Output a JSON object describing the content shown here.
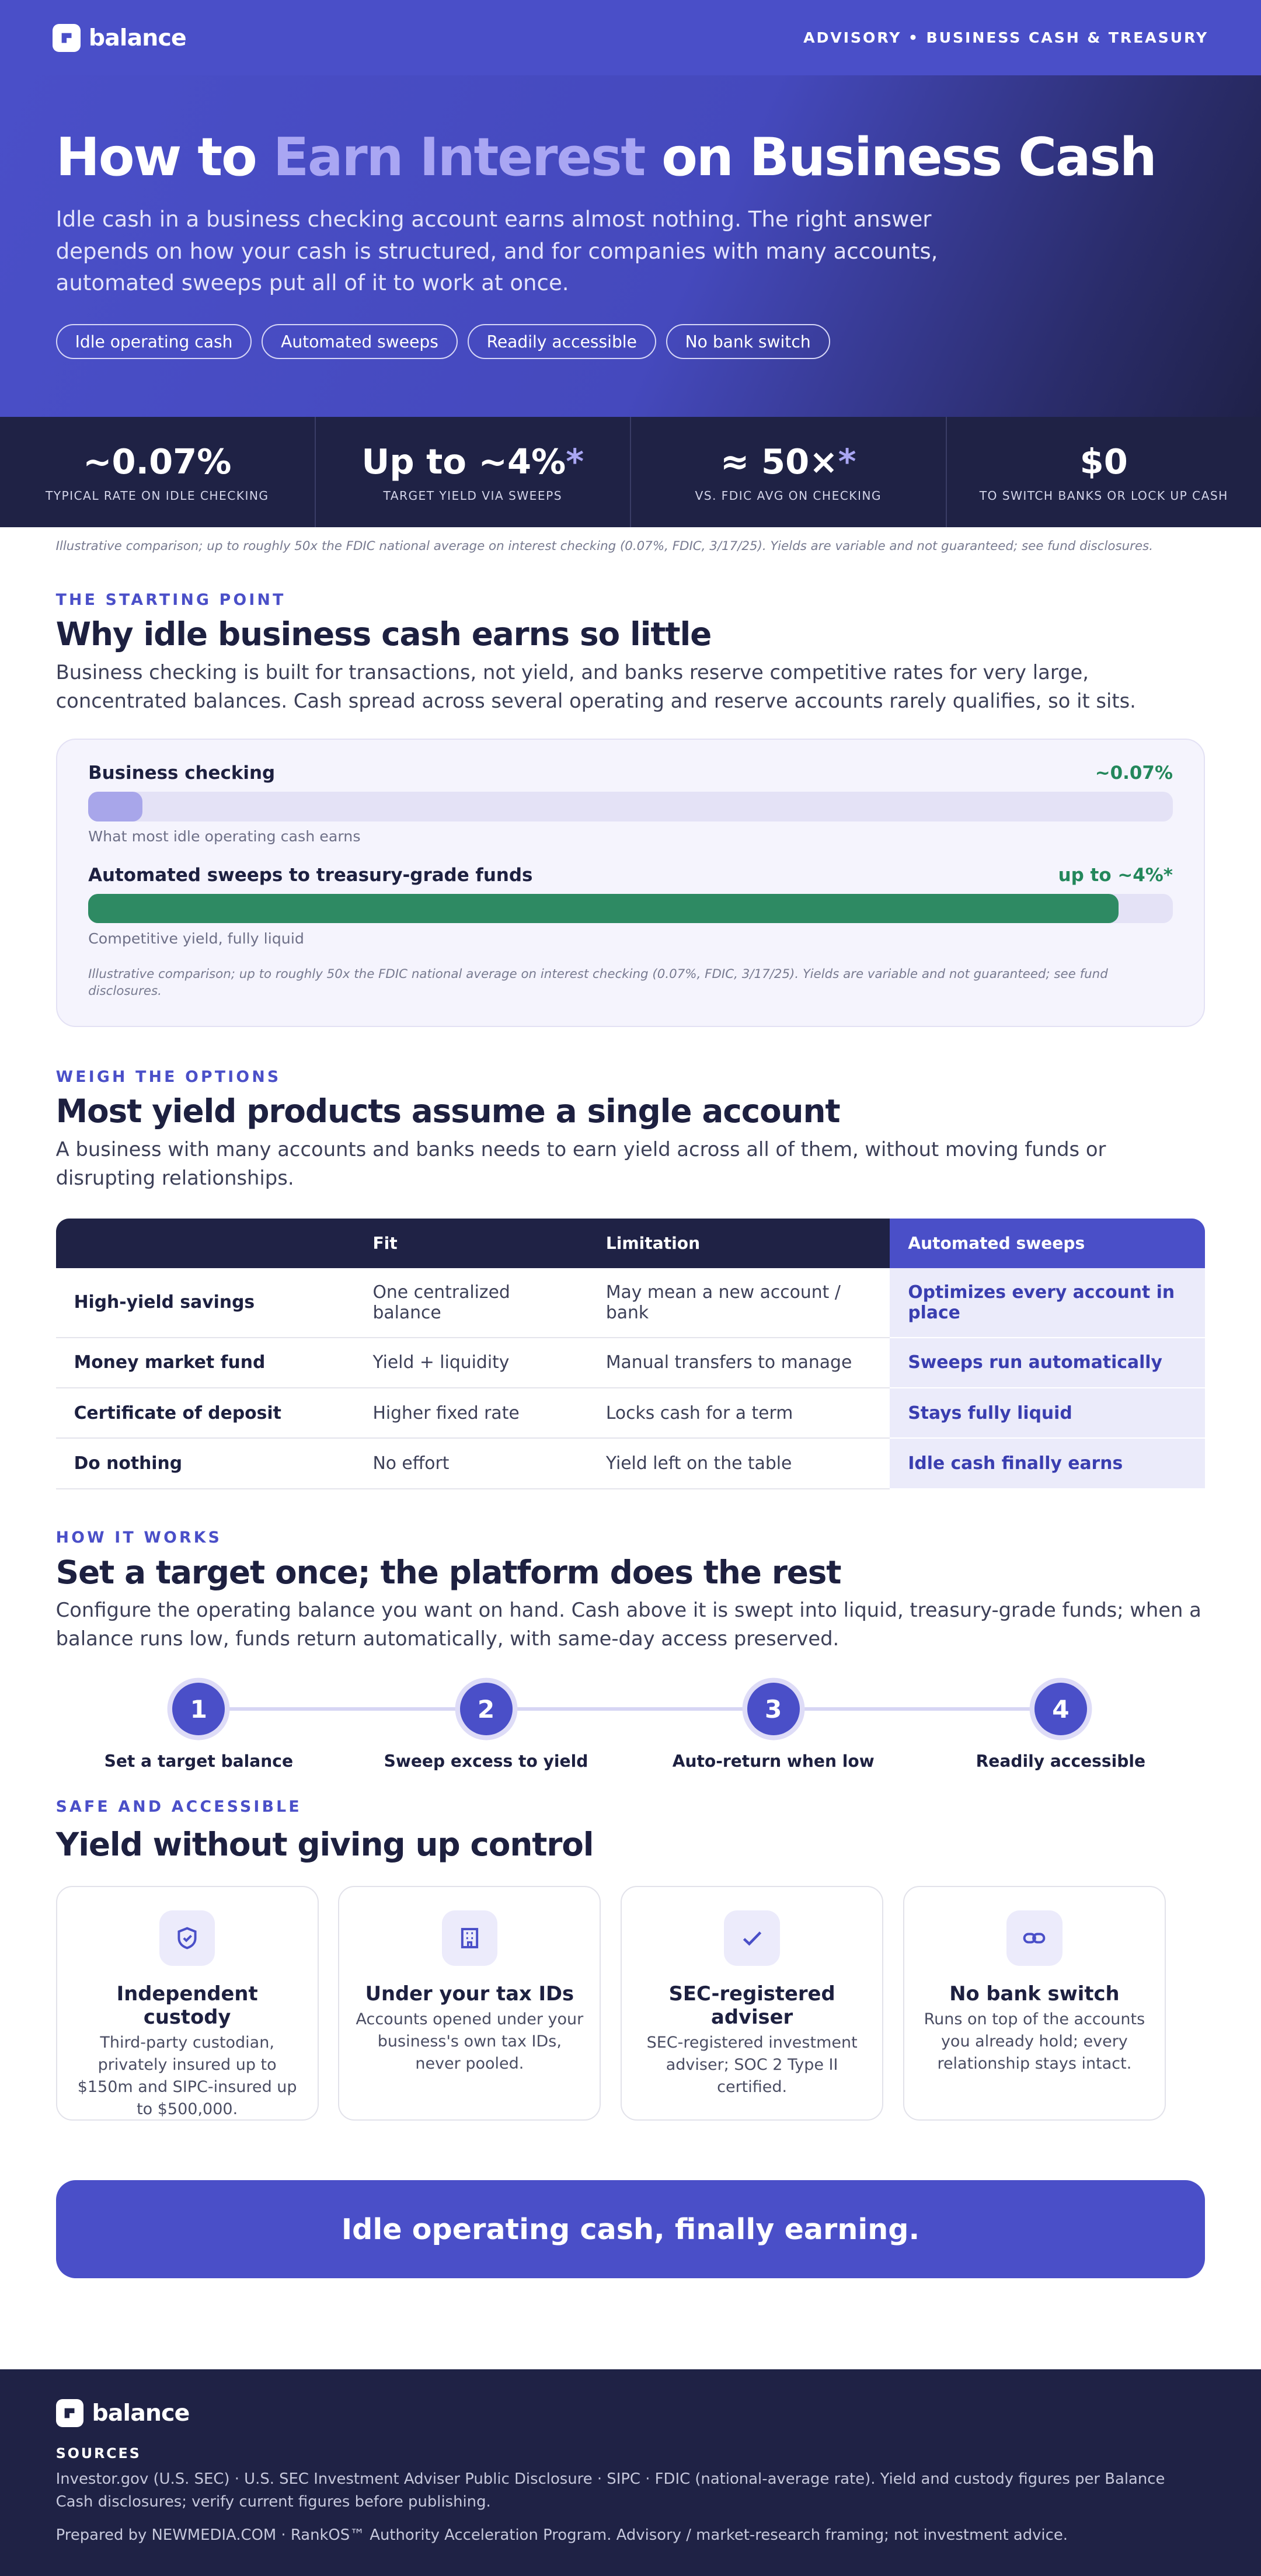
{
  "header": {
    "logo": "balance",
    "nav": "ADVISORY • BUSINESS CASH & TREASURY"
  },
  "hero": {
    "title_start": "How to ",
    "title_highlight": "Earn Interest",
    "title_end": " on Business Cash",
    "subtitle": "Idle cash in a business checking account earns almost nothing. The right answer depends on how your cash is structured, and for companies with many accounts, automated sweeps put all of it to work at once.",
    "tags": [
      "Idle operating cash",
      "Automated sweeps",
      "Readily accessible",
      "No bank switch"
    ]
  },
  "stats": [
    {
      "value": "~0.07%",
      "label": "TYPICAL RATE ON IDLE CHECKING"
    },
    {
      "value": "Up to ~4%",
      "note_mark": "*",
      "label": "TARGET YIELD VIA SWEEPS"
    },
    {
      "value": "≈ 50×",
      "note_mark": "*",
      "label": "VS. FDIC AVG ON CHECKING"
    },
    {
      "value": "$0",
      "label": "TO SWITCH BANKS OR LOCK UP CASH"
    }
  ],
  "disclaimer": "Illustrative comparison; up to roughly 50x the FDIC national average on interest checking (0.07%, FDIC, 3/17/25). Yields are variable and not guaranteed; see fund disclosures.",
  "starting_point": {
    "eyebrow": "THE STARTING POINT",
    "heading": "Why idle business cash earns so little",
    "body": "Business checking is built for transactions, not yield, and banks reserve competitive rates for very large, concentrated balances. Cash spread across several operating and reserve accounts rarely qualifies, so it sits.",
    "comparison": [
      {
        "label": "Business checking",
        "value": "~0.07%",
        "caption": "What most idle operating cash earns"
      },
      {
        "label": "Automated sweeps to treasury-grade funds",
        "value": "up to ~4%*",
        "caption": "Competitive yield, fully liquid"
      }
    ],
    "note": "Illustrative comparison; up to roughly 50x the FDIC national average on interest checking (0.07%, FDIC, 3/17/25). Yields are variable and not guaranteed; see fund disclosures."
  },
  "options": {
    "eyebrow": "WEIGH THE OPTIONS",
    "heading": "Most yield products assume a single account",
    "body": "A business with many accounts and banks needs to earn yield across all of them, without moving funds or disrupting relationships.",
    "table": {
      "columns": [
        "Fit",
        "Limitation",
        "Automated sweeps"
      ],
      "rows": [
        [
          "High-yield savings",
          "One centralized balance",
          "May mean a new account / bank",
          "Optimizes every account in place"
        ],
        [
          "Money market fund",
          "Yield + liquidity",
          "Manual transfers to manage",
          "Sweeps run automatically"
        ],
        [
          "Certificate of deposit",
          "Higher fixed rate",
          "Locks cash for a term",
          "Stays fully liquid"
        ],
        [
          "Do nothing",
          "No effort",
          "Yield left on the table",
          "Idle cash finally earns"
        ]
      ]
    }
  },
  "how_it_works": {
    "eyebrow": "HOW IT WORKS",
    "heading": "Set a target once; the platform does the rest",
    "body": "Configure the operating balance you want on hand. Cash above it is swept into liquid, treasury-grade funds; when a balance runs low, funds return automatically, with same-day access preserved.",
    "steps": [
      {
        "number": "1",
        "label": "Set a target balance"
      },
      {
        "number": "2",
        "label": "Sweep excess to yield"
      },
      {
        "number": "3",
        "label": "Auto-return when low"
      },
      {
        "number": "4",
        "label": "Readily accessible"
      }
    ]
  },
  "safety": {
    "eyebrow": "SAFE AND ACCESSIBLE",
    "heading": "Yield without giving up control",
    "cards": [
      {
        "title": "Independent custody",
        "body": "Third-party custodian, privately insured up to $150m and SIPC-insured up to $500,000."
      },
      {
        "title": "Under your tax IDs",
        "body": "Accounts opened under your business's own tax IDs, never pooled."
      },
      {
        "title": "SEC-registered adviser",
        "body": "SEC-registered investment adviser; SOC 2 Type II certified."
      },
      {
        "title": "No bank switch",
        "body": "Runs on top of the accounts you already hold; every relationship stays intact."
      }
    ]
  },
  "cta": "Idle operating cash, finally earning.",
  "footer": {
    "logo": "balance",
    "sources_heading": "SOURCES",
    "sources": "Investor.gov (U.S. SEC) · U.S. SEC Investment Adviser Public Disclosure · SIPC · FDIC (national-average rate). Yield and custody figures per Balance Cash disclosures; verify current figures before publishing.",
    "prepared": "Prepared by NEWMEDIA.COM · RankOS™ Authority Acceleration Program. Advisory / market-research framing; not investment advice."
  }
}
